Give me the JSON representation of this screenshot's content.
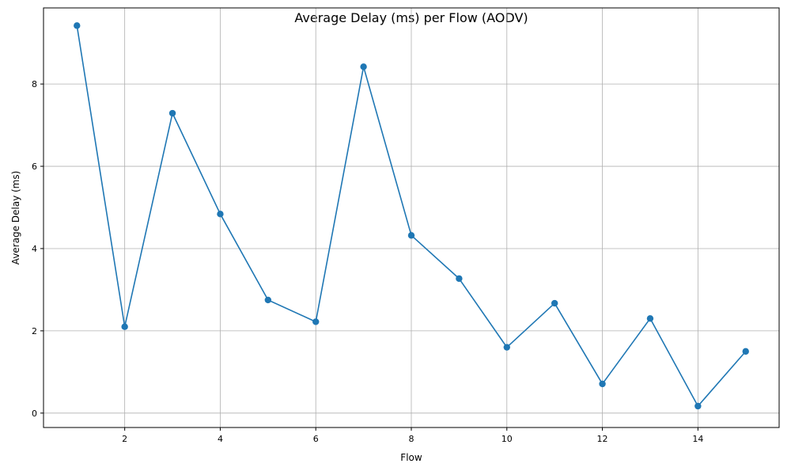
{
  "colors": {
    "line": "#1f77b4",
    "grid": "#b0b0b0",
    "axis": "#000000",
    "background": "#ffffff"
  },
  "chart_data": {
    "type": "line",
    "title": "Average Delay (ms) per Flow (AODV)",
    "xlabel": "Flow",
    "ylabel": "Average Delay (ms)",
    "x": [
      1,
      2,
      3,
      4,
      5,
      6,
      7,
      8,
      9,
      10,
      11,
      12,
      13,
      14,
      15
    ],
    "series": [
      {
        "values": [
          9.42,
          2.1,
          7.29,
          4.84,
          2.75,
          2.22,
          8.42,
          4.32,
          3.27,
          1.6,
          2.67,
          0.71,
          2.3,
          0.17,
          1.5
        ]
      }
    ],
    "xlim": [
      0.3,
      15.7
    ],
    "ylim": [
      -0.35,
      9.85
    ],
    "xticks": [
      2,
      4,
      6,
      8,
      10,
      12,
      14
    ],
    "yticks": [
      0,
      2,
      4,
      6,
      8
    ],
    "marker": "circle",
    "grid": true
  }
}
